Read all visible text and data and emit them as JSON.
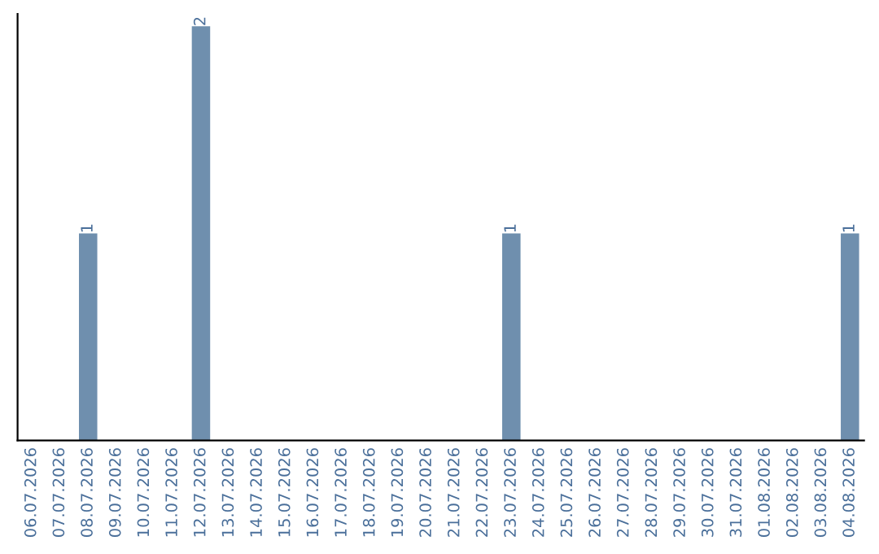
{
  "chart_data": {
    "type": "bar",
    "categories": [
      "06.07.2026",
      "07.07.2026",
      "08.07.2026",
      "09.07.2026",
      "10.07.2026",
      "11.07.2026",
      "12.07.2026",
      "13.07.2026",
      "14.07.2026",
      "15.07.2026",
      "16.07.2026",
      "17.07.2026",
      "18.07.2026",
      "19.07.2026",
      "20.07.2026",
      "21.07.2026",
      "22.07.2026",
      "23.07.2026",
      "24.07.2026",
      "25.07.2026",
      "26.07.2026",
      "27.07.2026",
      "28.07.2026",
      "29.07.2026",
      "30.07.2026",
      "31.07.2026",
      "01.08.2026",
      "02.08.2026",
      "03.08.2026",
      "04.08.2026"
    ],
    "values": [
      0,
      0,
      1,
      0,
      0,
      0,
      2,
      0,
      0,
      0,
      0,
      0,
      0,
      0,
      0,
      0,
      0,
      1,
      0,
      0,
      0,
      0,
      0,
      0,
      0,
      0,
      0,
      0,
      0,
      1
    ],
    "value_labels": [
      null,
      null,
      "1",
      null,
      null,
      null,
      "2",
      null,
      null,
      null,
      null,
      null,
      null,
      null,
      null,
      null,
      null,
      "1",
      null,
      null,
      null,
      null,
      null,
      null,
      null,
      null,
      null,
      null,
      null,
      "1"
    ],
    "color": "#6f8fae",
    "grid": false,
    "legend": false,
    "tick_labels": "x"
  }
}
